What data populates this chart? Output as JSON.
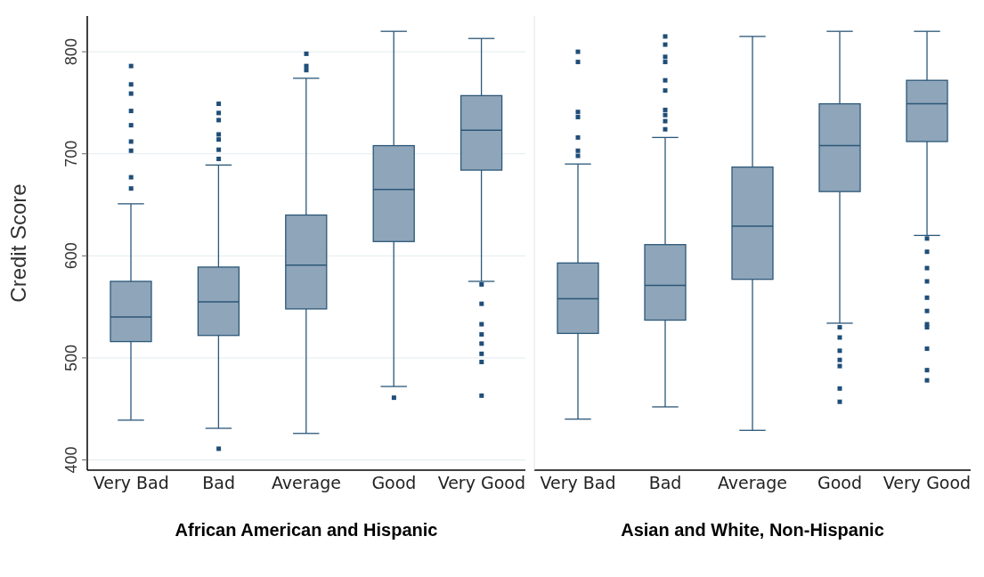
{
  "chart_data": [
    {
      "type": "box",
      "ylabel": "Credit Score",
      "xlabel": "African American and Hispanic",
      "categories": [
        "Very Bad",
        "Bad",
        "Average",
        "Good",
        "Very Good"
      ],
      "color": "#8fa5b9",
      "ylim": [
        390,
        835
      ],
      "yticks": [
        400,
        500,
        600,
        700,
        800
      ],
      "grid": "y",
      "boxes": [
        {
          "low": 439,
          "q1": 516,
          "median": 540,
          "q3": 575,
          "high": 651,
          "outliers": [
            666,
            677,
            703,
            712,
            728,
            742,
            759,
            768,
            786
          ]
        },
        {
          "low": 431,
          "q1": 522,
          "median": 555,
          "q3": 589,
          "high": 689,
          "outliers": [
            411,
            695,
            704,
            714,
            719,
            733,
            740,
            749
          ]
        },
        {
          "low": 426,
          "q1": 548,
          "median": 591,
          "q3": 640,
          "high": 774,
          "outliers": [
            782,
            786,
            798
          ]
        },
        {
          "low": 472,
          "q1": 614,
          "median": 665,
          "q3": 708,
          "high": 820,
          "outliers": [
            461
          ]
        },
        {
          "low": 575,
          "q1": 684,
          "median": 723,
          "q3": 757,
          "high": 813,
          "outliers": [
            463,
            496,
            504,
            514,
            523,
            533,
            553,
            572
          ]
        }
      ]
    },
    {
      "type": "box",
      "xlabel": "Asian and White, Non-Hispanic",
      "categories": [
        "Very Bad",
        "Bad",
        "Average",
        "Good",
        "Very Good"
      ],
      "color": "#8fa5b9",
      "ylim": [
        390,
        835
      ],
      "yticks": [
        400,
        500,
        600,
        700,
        800
      ],
      "grid": "y",
      "tick_labels": "x",
      "boxes": [
        {
          "low": 440,
          "q1": 524,
          "median": 558,
          "q3": 593,
          "high": 690,
          "outliers": [
            698,
            703,
            716,
            736,
            741,
            790,
            800
          ]
        },
        {
          "low": 452,
          "q1": 537,
          "median": 571,
          "q3": 611,
          "high": 716,
          "outliers": [
            724,
            732,
            738,
            743,
            762,
            772,
            790,
            795,
            807,
            815
          ]
        },
        {
          "low": 429,
          "q1": 577,
          "median": 629,
          "q3": 687,
          "high": 815
        },
        {
          "low": 534,
          "q1": 663,
          "median": 708,
          "q3": 749,
          "high": 820,
          "outliers": [
            457,
            470,
            492,
            498,
            507,
            520,
            530
          ]
        },
        {
          "low": 620,
          "q1": 712,
          "median": 749,
          "q3": 772,
          "high": 820,
          "outliers": [
            478,
            488,
            509,
            530,
            533,
            546,
            559,
            575,
            588,
            604,
            617
          ]
        }
      ]
    }
  ]
}
